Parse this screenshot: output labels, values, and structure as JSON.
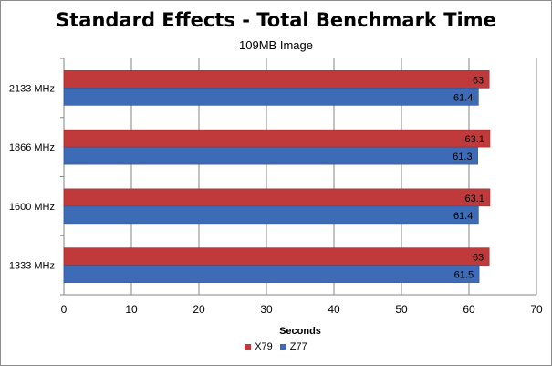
{
  "chart_data": {
    "type": "bar",
    "orientation": "horizontal",
    "title": "Standard Effects - Total Benchmark Time",
    "subtitle": "109MB Image",
    "xlabel": "Seconds",
    "ylabel": "",
    "categories": [
      "2133 MHz",
      "1866 MHz",
      "1600 MHz",
      "1333 MHz"
    ],
    "series": [
      {
        "name": "X79",
        "color": "#c0393b",
        "values": [
          63,
          63.1,
          63.1,
          63
        ]
      },
      {
        "name": "Z77",
        "color": "#3d6bb5",
        "values": [
          61.4,
          61.3,
          61.4,
          61.5
        ]
      }
    ],
    "data_labels": {
      "X79": [
        "63",
        "63.1",
        "63.1",
        "63"
      ],
      "Z77": [
        "61.4",
        "61.3",
        "61.4",
        "61.5"
      ]
    },
    "xlim": [
      0,
      70
    ],
    "xticks": [
      0,
      10,
      20,
      30,
      40,
      50,
      60,
      70
    ],
    "grid": true,
    "legend": "bottom"
  }
}
